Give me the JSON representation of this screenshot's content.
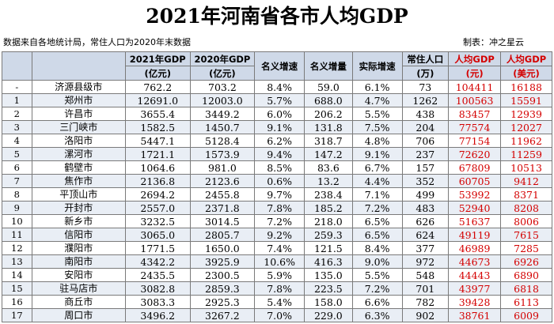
{
  "title": "2021年河南省各市人均GDP",
  "note": "数据来自各地统计局，常住人口为2020年末数据",
  "author": "制表：冲之星云",
  "headers_row1": [
    "",
    "",
    "2021年GDP",
    "2020年GDP",
    "名义增速",
    "名义增量",
    "实际增速",
    "常住人口",
    "人均GDP",
    "人均GDP"
  ],
  "headers_row2": [
    "(亿元)",
    "(亿元)",
    "(万)",
    "(元)",
    "(美元)"
  ],
  "rows": [
    [
      "-",
      "济源县级市",
      "762.2",
      "703.2",
      "8.4%",
      "59.0",
      "6.1%",
      "73",
      "104411",
      "16188"
    ],
    [
      "1",
      "郑州市",
      "12691.0",
      "12003.0",
      "5.7%",
      "688.0",
      "4.7%",
      "1262",
      "100563",
      "15591"
    ],
    [
      "2",
      "许昌市",
      "3655.4",
      "3449.2",
      "6.0%",
      "206.2",
      "5.5%",
      "438",
      "83457",
      "12939"
    ],
    [
      "3",
      "三门峡市",
      "1582.5",
      "1450.7",
      "9.1%",
      "131.8",
      "7.5%",
      "204",
      "77574",
      "12027"
    ],
    [
      "4",
      "洛阳市",
      "5447.1",
      "5128.4",
      "6.2%",
      "318.7",
      "4.8%",
      "706",
      "77154",
      "11962"
    ],
    [
      "5",
      "漯河市",
      "1721.1",
      "1573.9",
      "9.4%",
      "147.2",
      "9.1%",
      "237",
      "72620",
      "11259"
    ],
    [
      "6",
      "鹤壁市",
      "1064.6",
      "981.0",
      "8.5%",
      "83.6",
      "6.7%",
      "157",
      "67809",
      "10513"
    ],
    [
      "7",
      "焦作市",
      "2136.8",
      "2123.6",
      "0.6%",
      "13.2",
      "4.4%",
      "352",
      "60705",
      "9412"
    ],
    [
      "8",
      "平顶山市",
      "2694.2",
      "2455.8",
      "9.7%",
      "238.4",
      "7.1%",
      "499",
      "53992",
      "8371"
    ],
    [
      "9",
      "开封市",
      "2557.0",
      "2371.8",
      "7.8%",
      "185.2",
      "7.2%",
      "483",
      "52940",
      "8208"
    ],
    [
      "10",
      "新乡市",
      "3232.5",
      "3014.5",
      "7.2%",
      "218.0",
      "6.5%",
      "626",
      "51637",
      "8006"
    ],
    [
      "11",
      "信阳市",
      "3065.0",
      "2805.7",
      "9.2%",
      "259.3",
      "6.5%",
      "624",
      "49119",
      "7615"
    ],
    [
      "12",
      "濮阳市",
      "1771.5",
      "1650.0",
      "7.4%",
      "121.5",
      "8.4%",
      "377",
      "46989",
      "7285"
    ],
    [
      "13",
      "南阳市",
      "4342.2",
      "3925.9",
      "10.6%",
      "416.3",
      "9.0%",
      "972",
      "44673",
      "6926"
    ],
    [
      "14",
      "安阳市",
      "2435.5",
      "2300.5",
      "5.9%",
      "135.0",
      "5.5%",
      "548",
      "44443",
      "6890"
    ],
    [
      "15",
      "驻马店市",
      "3082.8",
      "2859.3",
      "7.8%",
      "223.5",
      "7.2%",
      "701",
      "43977",
      "6818"
    ],
    [
      "16",
      "商丘市",
      "3083.3",
      "2925.3",
      "5.4%",
      "158.0",
      "6.6%",
      "782",
      "39428",
      "6113"
    ],
    [
      "17",
      "周口市",
      "3496.2",
      "3267.2",
      "7.0%",
      "229.0",
      "6.3%",
      "902",
      "38761",
      "6009"
    ]
  ],
  "colors": {
    "header_bg": "#cfd9e8",
    "stripe": "#e9eef5",
    "accent_red": "#d40000"
  }
}
